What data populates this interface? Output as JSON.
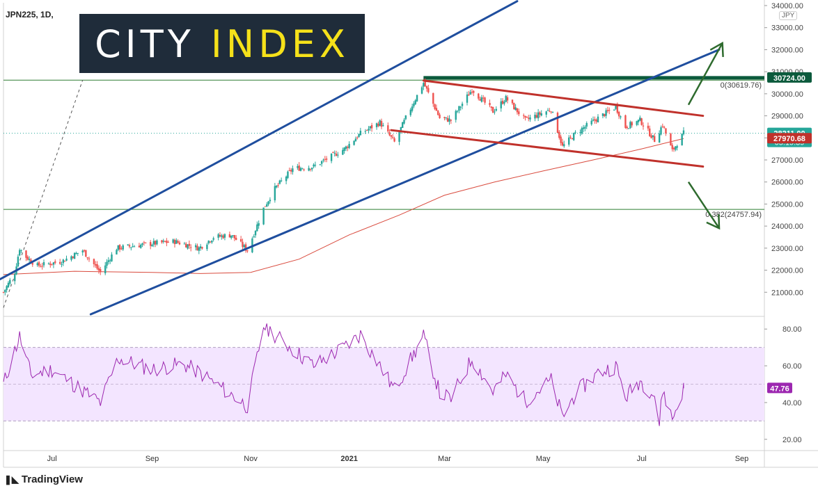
{
  "header": {
    "symbol": "JPN225, 1D,"
  },
  "logo": {
    "part1": "CITY ",
    "part2": "INDEX"
  },
  "footer": {
    "brand": "TradingView"
  },
  "currency": "JPY",
  "colors": {
    "up": "#26a69a",
    "down": "#ef5350",
    "channel": "#1f4e9e",
    "down_channel": "#c0312b",
    "ma": "#d94a3d",
    "fib": "#2e7d32",
    "arrow": "#2e6b2e",
    "rsi": "#9c27b0",
    "rsi_band": "#f3e5ff"
  },
  "chart_data": [
    {
      "type": "candlestick",
      "ylim": [
        20000,
        34000
      ],
      "y_ticks": [
        21000,
        22000,
        23000,
        24000,
        25000,
        26000,
        27000,
        28000,
        29000,
        30000,
        31000,
        32000,
        33000,
        34000
      ],
      "y_tick_labels": [
        "21000.00",
        "22000.00",
        "23000.00",
        "24000.00",
        "25000.00",
        "26000.00",
        "27000.00",
        "28000.00",
        "29000.00",
        "30000.00",
        "31000.00",
        "32000.00",
        "33000.00",
        "34000.00"
      ],
      "x_range": [
        "2020-06-01",
        "2021-09-15"
      ],
      "x_ticks": [
        {
          "date": "2020-07-01",
          "label": "Jul",
          "bold": false
        },
        {
          "date": "2020-09-01",
          "label": "Sep",
          "bold": false
        },
        {
          "date": "2020-11-01",
          "label": "Nov",
          "bold": false
        },
        {
          "date": "2021-01-01",
          "label": "2021",
          "bold": true
        },
        {
          "date": "2021-03-01",
          "label": "Mar",
          "bold": false
        },
        {
          "date": "2021-05-01",
          "label": "May",
          "bold": false
        },
        {
          "date": "2021-07-01",
          "label": "Jul",
          "bold": false
        },
        {
          "date": "2021-09-01",
          "label": "Sep",
          "bold": false
        }
      ],
      "price_path": [
        [
          "2020-06-01",
          21000
        ],
        [
          "2020-06-08",
          21900
        ],
        [
          "2020-06-11",
          23000
        ],
        [
          "2020-06-15",
          22600
        ],
        [
          "2020-06-22",
          22200
        ],
        [
          "2020-07-07",
          22400
        ],
        [
          "2020-07-20",
          22900
        ],
        [
          "2020-07-31",
          21900
        ],
        [
          "2020-08-10",
          23000
        ],
        [
          "2020-08-31",
          23200
        ],
        [
          "2020-09-15",
          23300
        ],
        [
          "2020-09-30",
          23000
        ],
        [
          "2020-10-09",
          23500
        ],
        [
          "2020-10-20",
          23600
        ],
        [
          "2020-10-30",
          22900
        ],
        [
          "2020-11-09",
          24800
        ],
        [
          "2020-11-16",
          25700
        ],
        [
          "2020-11-27",
          26600
        ],
        [
          "2020-12-10",
          26700
        ],
        [
          "2020-12-29",
          27500
        ],
        [
          "2021-01-08",
          28200
        ],
        [
          "2021-01-20",
          28700
        ],
        [
          "2021-01-29",
          27800
        ],
        [
          "2021-02-05",
          28900
        ],
        [
          "2021-02-16",
          30500
        ],
        [
          "2021-02-26",
          28900
        ],
        [
          "2021-03-05",
          28800
        ],
        [
          "2021-03-18",
          30200
        ],
        [
          "2021-03-31",
          29200
        ],
        [
          "2021-04-08",
          29800
        ],
        [
          "2021-04-20",
          28800
        ],
        [
          "2021-05-06",
          29300
        ],
        [
          "2021-05-13",
          27600
        ],
        [
          "2021-05-21",
          28200
        ],
        [
          "2021-06-04",
          28900
        ],
        [
          "2021-06-15",
          29400
        ],
        [
          "2021-06-21",
          28500
        ],
        [
          "2021-06-30",
          28800
        ],
        [
          "2021-07-09",
          27900
        ],
        [
          "2021-07-14",
          28600
        ],
        [
          "2021-07-20",
          27400
        ],
        [
          "2021-07-27",
          28211
        ]
      ],
      "moving_average": [
        [
          "2020-06-01",
          21800
        ],
        [
          "2020-07-15",
          21950
        ],
        [
          "2020-09-01",
          21900
        ],
        [
          "2020-10-01",
          21850
        ],
        [
          "2020-11-01",
          21900
        ],
        [
          "2020-12-01",
          22500
        ],
        [
          "2021-01-01",
          23600
        ],
        [
          "2021-02-01",
          24500
        ],
        [
          "2021-03-01",
          25400
        ],
        [
          "2021-04-01",
          26000
        ],
        [
          "2021-05-01",
          26500
        ],
        [
          "2021-06-01",
          27000
        ],
        [
          "2021-07-01",
          27500
        ],
        [
          "2021-07-27",
          27970.68
        ]
      ],
      "price_labels": [
        {
          "value": 30724.0,
          "label": "30724.00",
          "color": "#0b5a3c"
        },
        {
          "value": 28211.0,
          "label": "28211.00",
          "sublabel": "05:19:39",
          "color": "#26a69a"
        },
        {
          "value": 27970.68,
          "label": "27970.68",
          "color": "#c0312b"
        }
      ],
      "horizontal_lines": [
        {
          "value": 30619.76,
          "label": "0(30619.76)",
          "style": "fib"
        },
        {
          "value": 24757.94,
          "label": "0.382(24757.94)",
          "style": "fib"
        }
      ],
      "trendlines": [
        {
          "name": "upper-channel",
          "from": [
            "2020-05-25",
            21400
          ],
          "to": [
            "2021-04-15",
            34200
          ],
          "color": "blue"
        },
        {
          "name": "lower-channel",
          "from": [
            "2020-07-25",
            20000
          ],
          "to": [
            "2021-08-18",
            32000
          ],
          "color": "blue"
        },
        {
          "name": "down-upper",
          "from": [
            "2021-02-16",
            30600
          ],
          "to": [
            "2021-08-08",
            29000
          ],
          "color": "red"
        },
        {
          "name": "down-lower",
          "from": [
            "2021-01-27",
            28350
          ],
          "to": [
            "2021-08-08",
            26700
          ],
          "color": "red"
        }
      ],
      "arrows": [
        {
          "direction": "up",
          "from": [
            "2021-07-30",
            29500
          ],
          "to": [
            "2021-08-20",
            32300
          ]
        },
        {
          "direction": "down",
          "from": [
            "2021-07-30",
            26000
          ],
          "to": [
            "2021-08-18",
            23900
          ]
        }
      ]
    },
    {
      "type": "line",
      "ylim": [
        15,
        85
      ],
      "y_ticks": [
        20,
        40,
        60,
        80
      ],
      "y_tick_labels": [
        "20.00",
        "40.00",
        "60.00",
        "80.00"
      ],
      "bands": [
        30,
        70
      ],
      "last_value": 47.76,
      "last_label": "47.76",
      "rsi_path": [
        [
          "2020-06-01",
          50
        ],
        [
          "2020-06-11",
          76
        ],
        [
          "2020-06-18",
          55
        ],
        [
          "2020-07-01",
          58
        ],
        [
          "2020-07-31",
          40
        ],
        [
          "2020-08-11",
          64
        ],
        [
          "2020-09-01",
          58
        ],
        [
          "2020-09-20",
          61
        ],
        [
          "2020-10-01",
          56
        ],
        [
          "2020-10-30",
          38
        ],
        [
          "2020-11-09",
          82
        ],
        [
          "2020-11-20",
          74
        ],
        [
          "2020-12-10",
          60
        ],
        [
          "2020-12-29",
          70
        ],
        [
          "2021-01-08",
          77
        ],
        [
          "2021-01-29",
          47
        ],
        [
          "2021-02-16",
          76
        ],
        [
          "2021-02-26",
          45
        ],
        [
          "2021-03-05",
          42
        ],
        [
          "2021-03-18",
          64
        ],
        [
          "2021-03-31",
          46
        ],
        [
          "2021-04-08",
          55
        ],
        [
          "2021-04-20",
          41
        ],
        [
          "2021-05-06",
          52
        ],
        [
          "2021-05-13",
          32
        ],
        [
          "2021-05-21",
          45
        ],
        [
          "2021-06-04",
          56
        ],
        [
          "2021-06-15",
          60
        ],
        [
          "2021-06-21",
          43
        ],
        [
          "2021-06-30",
          52
        ],
        [
          "2021-07-09",
          44
        ],
        [
          "2021-07-12",
          28
        ],
        [
          "2021-07-14",
          47
        ],
        [
          "2021-07-20",
          31
        ],
        [
          "2021-07-27",
          47.76
        ]
      ]
    }
  ]
}
